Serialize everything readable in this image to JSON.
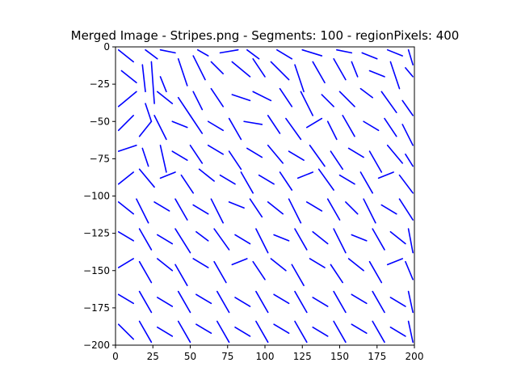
{
  "chart_data": {
    "type": "line",
    "title": "Merged Image - Stripes.png - Segments: 100 - regionPixels: 400",
    "xlabel": "",
    "ylabel": "",
    "xlim": [
      0,
      200
    ],
    "ylim": [
      -200,
      0
    ],
    "x_ticks": [
      {
        "value": 0,
        "label": "0"
      },
      {
        "value": 25,
        "label": "25"
      },
      {
        "value": 50,
        "label": "50"
      },
      {
        "value": 75,
        "label": "75"
      },
      {
        "value": 100,
        "label": "100"
      },
      {
        "value": 125,
        "label": "125"
      },
      {
        "value": 150,
        "label": "150"
      },
      {
        "value": 175,
        "label": "175"
      },
      {
        "value": 200,
        "label": "200"
      }
    ],
    "y_ticks": [
      {
        "value": 0,
        "label": "0"
      },
      {
        "value": -25,
        "label": "−25"
      },
      {
        "value": -50,
        "label": "−50"
      },
      {
        "value": -75,
        "label": "−75"
      },
      {
        "value": -100,
        "label": "−100"
      },
      {
        "value": -125,
        "label": "−125"
      },
      {
        "value": -150,
        "label": "−150"
      },
      {
        "value": -175,
        "label": "−175"
      },
      {
        "value": -200,
        "label": "−200"
      }
    ],
    "series_color": "#0000ff",
    "segments": [
      [
        2,
        -2,
        12,
        -10
      ],
      [
        20,
        -2,
        28,
        -8
      ],
      [
        30,
        -2,
        40,
        -4
      ],
      [
        55,
        -2,
        62,
        -6
      ],
      [
        70,
        -4,
        82,
        -2
      ],
      [
        88,
        -2,
        96,
        -8
      ],
      [
        108,
        -2,
        118,
        -8
      ],
      [
        125,
        -2,
        138,
        -6
      ],
      [
        148,
        -2,
        158,
        -4
      ],
      [
        165,
        -4,
        175,
        -8
      ],
      [
        182,
        -2,
        192,
        -6
      ],
      [
        196,
        -2,
        199,
        -12
      ],
      [
        4,
        -16,
        14,
        -24
      ],
      [
        18,
        -12,
        20,
        -30
      ],
      [
        24,
        -10,
        26,
        -38
      ],
      [
        30,
        -20,
        34,
        -30
      ],
      [
        42,
        -8,
        48,
        -26
      ],
      [
        52,
        -6,
        60,
        -22
      ],
      [
        64,
        -10,
        72,
        -18
      ],
      [
        78,
        -10,
        90,
        -20
      ],
      [
        92,
        -8,
        100,
        -20
      ],
      [
        104,
        -10,
        116,
        -22
      ],
      [
        120,
        -12,
        126,
        -30
      ],
      [
        132,
        -10,
        140,
        -24
      ],
      [
        146,
        -8,
        154,
        -22
      ],
      [
        158,
        -10,
        162,
        -20
      ],
      [
        170,
        -16,
        180,
        -20
      ],
      [
        184,
        -10,
        190,
        -28
      ],
      [
        194,
        -14,
        199,
        -20
      ],
      [
        2,
        -40,
        14,
        -30
      ],
      [
        20,
        -38,
        24,
        -50
      ],
      [
        28,
        -30,
        38,
        -38
      ],
      [
        42,
        -34,
        50,
        -46
      ],
      [
        52,
        -30,
        58,
        -42
      ],
      [
        64,
        -28,
        72,
        -40
      ],
      [
        78,
        -32,
        90,
        -36
      ],
      [
        92,
        -30,
        104,
        -36
      ],
      [
        110,
        -28,
        118,
        -40
      ],
      [
        124,
        -30,
        132,
        -46
      ],
      [
        138,
        -32,
        146,
        -40
      ],
      [
        150,
        -30,
        160,
        -40
      ],
      [
        164,
        -28,
        172,
        -34
      ],
      [
        178,
        -30,
        188,
        -44
      ],
      [
        192,
        -36,
        199,
        -46
      ],
      [
        2,
        -56,
        12,
        -46
      ],
      [
        16,
        -60,
        24,
        -50
      ],
      [
        26,
        -46,
        34,
        -62
      ],
      [
        38,
        -50,
        48,
        -54
      ],
      [
        50,
        -46,
        58,
        -58
      ],
      [
        62,
        -50,
        72,
        -56
      ],
      [
        76,
        -48,
        84,
        -62
      ],
      [
        86,
        -50,
        98,
        -52
      ],
      [
        102,
        -46,
        110,
        -58
      ],
      [
        114,
        -48,
        124,
        -62
      ],
      [
        128,
        -54,
        138,
        -48
      ],
      [
        142,
        -50,
        148,
        -62
      ],
      [
        152,
        -46,
        160,
        -60
      ],
      [
        166,
        -50,
        176,
        -56
      ],
      [
        180,
        -48,
        188,
        -60
      ],
      [
        192,
        -52,
        199,
        -66
      ],
      [
        2,
        -70,
        14,
        -66
      ],
      [
        18,
        -68,
        22,
        -80
      ],
      [
        30,
        -66,
        34,
        -84
      ],
      [
        38,
        -70,
        48,
        -76
      ],
      [
        50,
        -66,
        58,
        -78
      ],
      [
        62,
        -66,
        72,
        -72
      ],
      [
        76,
        -70,
        84,
        -82
      ],
      [
        88,
        -68,
        98,
        -74
      ],
      [
        102,
        -66,
        112,
        -78
      ],
      [
        116,
        -70,
        126,
        -76
      ],
      [
        130,
        -66,
        140,
        -80
      ],
      [
        144,
        -70,
        152,
        -82
      ],
      [
        156,
        -68,
        166,
        -74
      ],
      [
        170,
        -70,
        178,
        -84
      ],
      [
        182,
        -66,
        192,
        -78
      ],
      [
        194,
        -72,
        199,
        -80
      ],
      [
        2,
        -92,
        12,
        -84
      ],
      [
        16,
        -82,
        26,
        -94
      ],
      [
        30,
        -88,
        40,
        -84
      ],
      [
        44,
        -86,
        52,
        -98
      ],
      [
        56,
        -82,
        66,
        -90
      ],
      [
        70,
        -86,
        80,
        -92
      ],
      [
        84,
        -84,
        92,
        -98
      ],
      [
        96,
        -86,
        106,
        -92
      ],
      [
        110,
        -84,
        118,
        -96
      ],
      [
        122,
        -88,
        132,
        -84
      ],
      [
        136,
        -82,
        146,
        -96
      ],
      [
        150,
        -86,
        160,
        -92
      ],
      [
        164,
        -84,
        172,
        -98
      ],
      [
        176,
        -88,
        186,
        -84
      ],
      [
        190,
        -86,
        199,
        -98
      ],
      [
        2,
        -104,
        12,
        -112
      ],
      [
        14,
        -102,
        22,
        -118
      ],
      [
        26,
        -104,
        36,
        -110
      ],
      [
        40,
        -102,
        48,
        -116
      ],
      [
        52,
        -106,
        62,
        -112
      ],
      [
        64,
        -102,
        72,
        -118
      ],
      [
        76,
        -104,
        86,
        -108
      ],
      [
        90,
        -102,
        98,
        -114
      ],
      [
        102,
        -104,
        112,
        -112
      ],
      [
        116,
        -102,
        124,
        -118
      ],
      [
        128,
        -104,
        138,
        -110
      ],
      [
        142,
        -102,
        150,
        -116
      ],
      [
        154,
        -104,
        162,
        -112
      ],
      [
        166,
        -102,
        174,
        -118
      ],
      [
        178,
        -106,
        188,
        -112
      ],
      [
        190,
        -102,
        199,
        -116
      ],
      [
        2,
        -124,
        12,
        -130
      ],
      [
        16,
        -122,
        24,
        -136
      ],
      [
        28,
        -126,
        38,
        -132
      ],
      [
        40,
        -122,
        50,
        -138
      ],
      [
        54,
        -124,
        62,
        -130
      ],
      [
        66,
        -122,
        76,
        -136
      ],
      [
        80,
        -126,
        90,
        -132
      ],
      [
        94,
        -122,
        102,
        -138
      ],
      [
        106,
        -126,
        116,
        -130
      ],
      [
        120,
        -122,
        128,
        -136
      ],
      [
        132,
        -124,
        142,
        -132
      ],
      [
        146,
        -122,
        154,
        -138
      ],
      [
        158,
        -126,
        168,
        -130
      ],
      [
        172,
        -122,
        180,
        -136
      ],
      [
        184,
        -124,
        194,
        -132
      ],
      [
        196,
        -122,
        199,
        -138
      ],
      [
        2,
        -148,
        12,
        -142
      ],
      [
        16,
        -144,
        24,
        -158
      ],
      [
        28,
        -142,
        38,
        -150
      ],
      [
        40,
        -146,
        48,
        -160
      ],
      [
        52,
        -142,
        62,
        -148
      ],
      [
        66,
        -144,
        74,
        -158
      ],
      [
        78,
        -146,
        88,
        -142
      ],
      [
        92,
        -144,
        100,
        -156
      ],
      [
        104,
        -142,
        114,
        -150
      ],
      [
        118,
        -146,
        126,
        -160
      ],
      [
        130,
        -142,
        140,
        -148
      ],
      [
        144,
        -146,
        152,
        -158
      ],
      [
        156,
        -142,
        166,
        -150
      ],
      [
        170,
        -144,
        178,
        -158
      ],
      [
        182,
        -146,
        192,
        -142
      ],
      [
        194,
        -144,
        199,
        -156
      ],
      [
        2,
        -166,
        12,
        -172
      ],
      [
        16,
        -164,
        24,
        -178
      ],
      [
        28,
        -168,
        38,
        -174
      ],
      [
        42,
        -164,
        50,
        -178
      ],
      [
        54,
        -166,
        64,
        -172
      ],
      [
        68,
        -164,
        76,
        -178
      ],
      [
        80,
        -168,
        90,
        -174
      ],
      [
        94,
        -164,
        102,
        -178
      ],
      [
        106,
        -166,
        116,
        -172
      ],
      [
        120,
        -164,
        128,
        -178
      ],
      [
        132,
        -168,
        142,
        -174
      ],
      [
        146,
        -164,
        154,
        -178
      ],
      [
        158,
        -166,
        168,
        -172
      ],
      [
        172,
        -164,
        180,
        -178
      ],
      [
        184,
        -168,
        194,
        -174
      ],
      [
        196,
        -164,
        199,
        -178
      ],
      [
        2,
        -186,
        12,
        -196
      ],
      [
        16,
        -184,
        24,
        -198
      ],
      [
        28,
        -188,
        38,
        -194
      ],
      [
        42,
        -184,
        50,
        -198
      ],
      [
        54,
        -186,
        64,
        -192
      ],
      [
        68,
        -184,
        76,
        -198
      ],
      [
        80,
        -188,
        90,
        -194
      ],
      [
        94,
        -184,
        102,
        -198
      ],
      [
        106,
        -186,
        116,
        -192
      ],
      [
        120,
        -184,
        128,
        -198
      ],
      [
        132,
        -188,
        142,
        -194
      ],
      [
        146,
        -184,
        154,
        -198
      ],
      [
        158,
        -186,
        168,
        -192
      ],
      [
        172,
        -184,
        180,
        -198
      ],
      [
        184,
        -188,
        194,
        -194
      ],
      [
        196,
        -184,
        199,
        -198
      ]
    ]
  }
}
